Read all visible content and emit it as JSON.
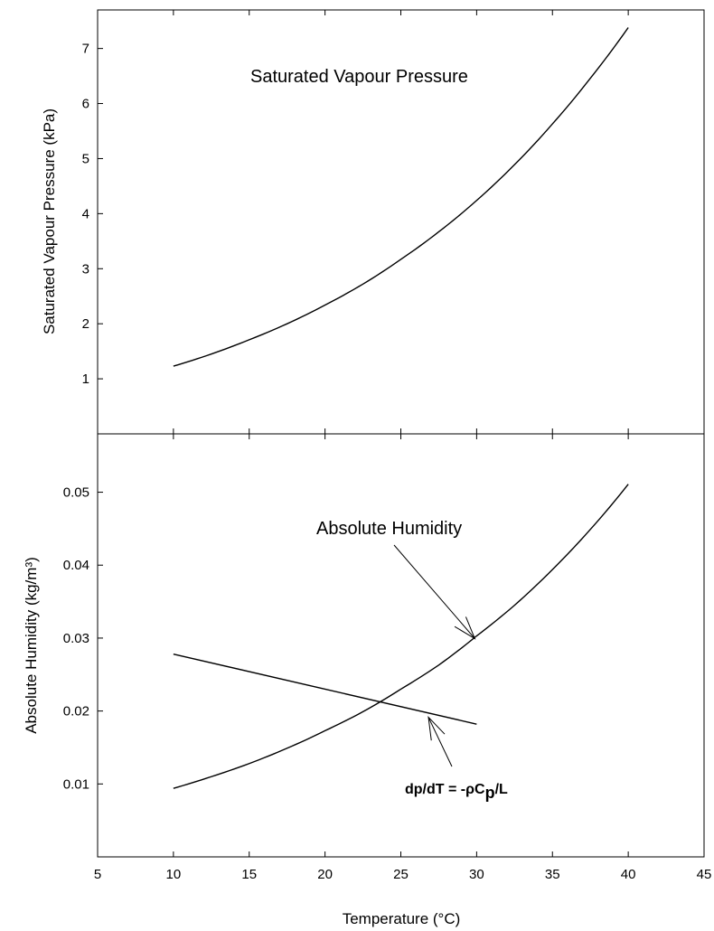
{
  "chart_data": [
    {
      "type": "line",
      "title": "",
      "xlabel": "",
      "ylabel": "Saturated Vapour Pressure (kPa)",
      "xlim": [
        5,
        45
      ],
      "ylim": [
        0,
        7.7
      ],
      "yticks": [
        1,
        2,
        3,
        4,
        5,
        6,
        7
      ],
      "series": [
        {
          "x": [
            10,
            12.5,
            15,
            17.5,
            20,
            22.5,
            25,
            27.5,
            30,
            32.5,
            35,
            37.5,
            40
          ],
          "y": [
            1.23,
            1.45,
            1.71,
            2.0,
            2.34,
            2.72,
            3.17,
            3.67,
            4.24,
            4.89,
            5.63,
            6.46,
            7.38
          ]
        }
      ],
      "annotations": [
        {
          "text": "Saturated Vapour Pressure"
        }
      ]
    },
    {
      "type": "line",
      "title": "",
      "xlabel": "Temperature (°C)",
      "ylabel": "Absolute Humidity (kg/m³)",
      "xlim": [
        5,
        45
      ],
      "ylim": [
        0,
        0.058
      ],
      "xticks": [
        5,
        10,
        15,
        20,
        25,
        30,
        35,
        40,
        45
      ],
      "yticks": [
        0.01,
        0.02,
        0.03,
        0.04,
        0.05
      ],
      "series": [
        {
          "x": [
            10,
            12.5,
            15,
            17.5,
            20,
            22.5,
            25,
            27.5,
            30,
            32.5,
            35,
            37.5,
            40
          ],
          "y": [
            0.0094,
            0.011,
            0.0128,
            0.0149,
            0.0173,
            0.0199,
            0.023,
            0.0263,
            0.0303,
            0.0345,
            0.0394,
            0.0449,
            0.0511
          ]
        },
        {
          "x": [
            10,
            30
          ],
          "y": [
            0.0278,
            0.0182
          ]
        }
      ],
      "annotations": [
        {
          "text": "Absolute Humidity",
          "points_to": [
            30,
            0.0303
          ]
        },
        {
          "text": "dp/dT = -ρC",
          "subscript": "p",
          "suffix": "/L",
          "points_to": [
            26.7,
            0.0199
          ]
        }
      ]
    }
  ]
}
